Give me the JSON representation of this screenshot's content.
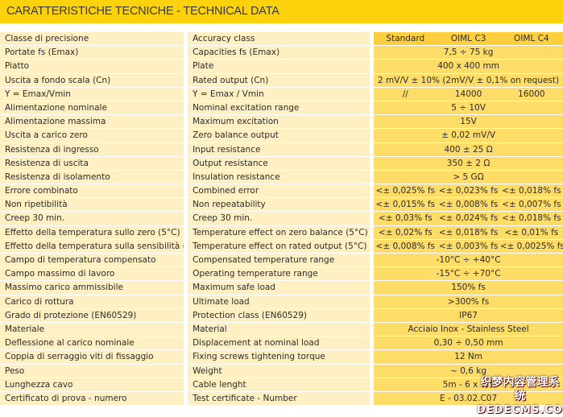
{
  "title": "CARATTERISTICHE TECNICHE - TECHNICAL DATA",
  "header": {
    "it": "Classe di precisione",
    "en": "Accuracy class",
    "values": [
      "Standard",
      "OIML C3",
      "OIML C4"
    ]
  },
  "rows": [
    {
      "it": "Portate fs (Emax)",
      "en": "Capacities fs (Emax)",
      "values": [
        "7,5 ÷ 75 kg"
      ]
    },
    {
      "it": "Piatto",
      "en": "Plate",
      "values": [
        "400 x 400 mm"
      ]
    },
    {
      "it": "Uscita a fondo scala (Cn)",
      "en": "Rated output (Cn)",
      "values": [
        "2 mV/V ± 10% (2mV/V ± 0,1% on request)"
      ]
    },
    {
      "it": "Y = Emax/Vmin",
      "en": "Y = Emax / Vmin",
      "values": [
        "//",
        "14000",
        "16000"
      ]
    },
    {
      "it": "Alimentazione nominale",
      "en": "Nominal excitation range",
      "values": [
        "5 ÷ 10V"
      ]
    },
    {
      "it": "Alimentazione massima",
      "en": "Maximum excitation",
      "values": [
        "15V"
      ]
    },
    {
      "it": "Uscita a carico zero",
      "en": "Zero balance output",
      "values": [
        "± 0,02 mV/V"
      ]
    },
    {
      "it": "Resistenza di ingresso",
      "en": "Input resistance",
      "values": [
        "400 ± 25 Ω"
      ]
    },
    {
      "it": "Resistenza di uscita",
      "en": "Output resistance",
      "values": [
        "350 ± 2 Ω"
      ]
    },
    {
      "it": "Resistenza di isolamento",
      "en": "Insulation resistance",
      "values": [
        "> 5 GΩ"
      ]
    },
    {
      "it": "Errore combinato",
      "en": "Combined error",
      "values": [
        "<± 0,025% fs",
        "<± 0,023% fs",
        "<± 0,018% fs"
      ]
    },
    {
      "it": "Non ripetibilità",
      "en": "Non repeatability",
      "values": [
        "<± 0,015% fs",
        "<± 0,008% fs",
        "<± 0,007% fs"
      ]
    },
    {
      "it": "Creep 30 min.",
      "en": "Creep 30 min.",
      "values": [
        "<± 0,03% fs",
        "<± 0,024% fs",
        "<± 0,018% fs"
      ]
    },
    {
      "it": "Effetto della temperatura sullo zero (5°C)",
      "en": "Temperature effect on zero balance (5°C)",
      "values": [
        "<± 0,02% fs",
        "<± 0,018% fs",
        "<± 0,01% fs"
      ]
    },
    {
      "it": "Effetto della temperatura sulla sensibilità (5°C)",
      "en": "Temperature effect on rated output (5°C)",
      "values": [
        "<± 0,008% fs",
        "<± 0,003% fs",
        "<± 0,0025% fs"
      ]
    },
    {
      "it": "Campo di temperatura compensato",
      "en": "Compensated temperature range",
      "values": [
        "-10°C ÷ +40°C"
      ]
    },
    {
      "it": "Campo massimo di lavoro",
      "en": "Operating temperature range",
      "values": [
        "-15°C ÷ +70°C"
      ]
    },
    {
      "it": "Massimo carico ammissibile",
      "en": "Maximum safe load",
      "values": [
        "150% fs"
      ]
    },
    {
      "it": "Carico di rottura",
      "en": "Ultimate load",
      "values": [
        ">300% fs"
      ]
    },
    {
      "it": "Grado di protezione (EN60529)",
      "en": "Protection class (EN60529)",
      "values": [
        "IP67"
      ]
    },
    {
      "it": "Materiale",
      "en": "Material",
      "values": [
        "Acciaio Inox - Stainless Steel"
      ]
    },
    {
      "it": "Deflessione al carico nominale",
      "en": "Displacement at nominal load",
      "values": [
        "0,30 ÷ 0,50 mm"
      ]
    },
    {
      "it": "Coppia di serraggio viti di fissaggio",
      "en": "Fixing screws tightening torque",
      "values": [
        "12 Nm"
      ]
    },
    {
      "it": "Peso",
      "en": "Weight",
      "values": [
        "~ 0,6 kg"
      ]
    },
    {
      "it": "Lunghezza cavo",
      "en": "Cable lenght",
      "values": [
        "5m - 6 x 0,1"
      ]
    },
    {
      "it": "Certificato di prova - numero",
      "en": "Test certificate - Number",
      "values": [
        "E - 03.02.C07"
      ]
    }
  ],
  "watermark": {
    "line1": "织梦内容管理系统",
    "line2": "DEDECMS.COM"
  },
  "colors": {
    "title_bar": "#fcd20c",
    "label_cell": "#fef0c2",
    "value_cell": "#fddc68",
    "header_value_cell": "#fccf3f"
  }
}
